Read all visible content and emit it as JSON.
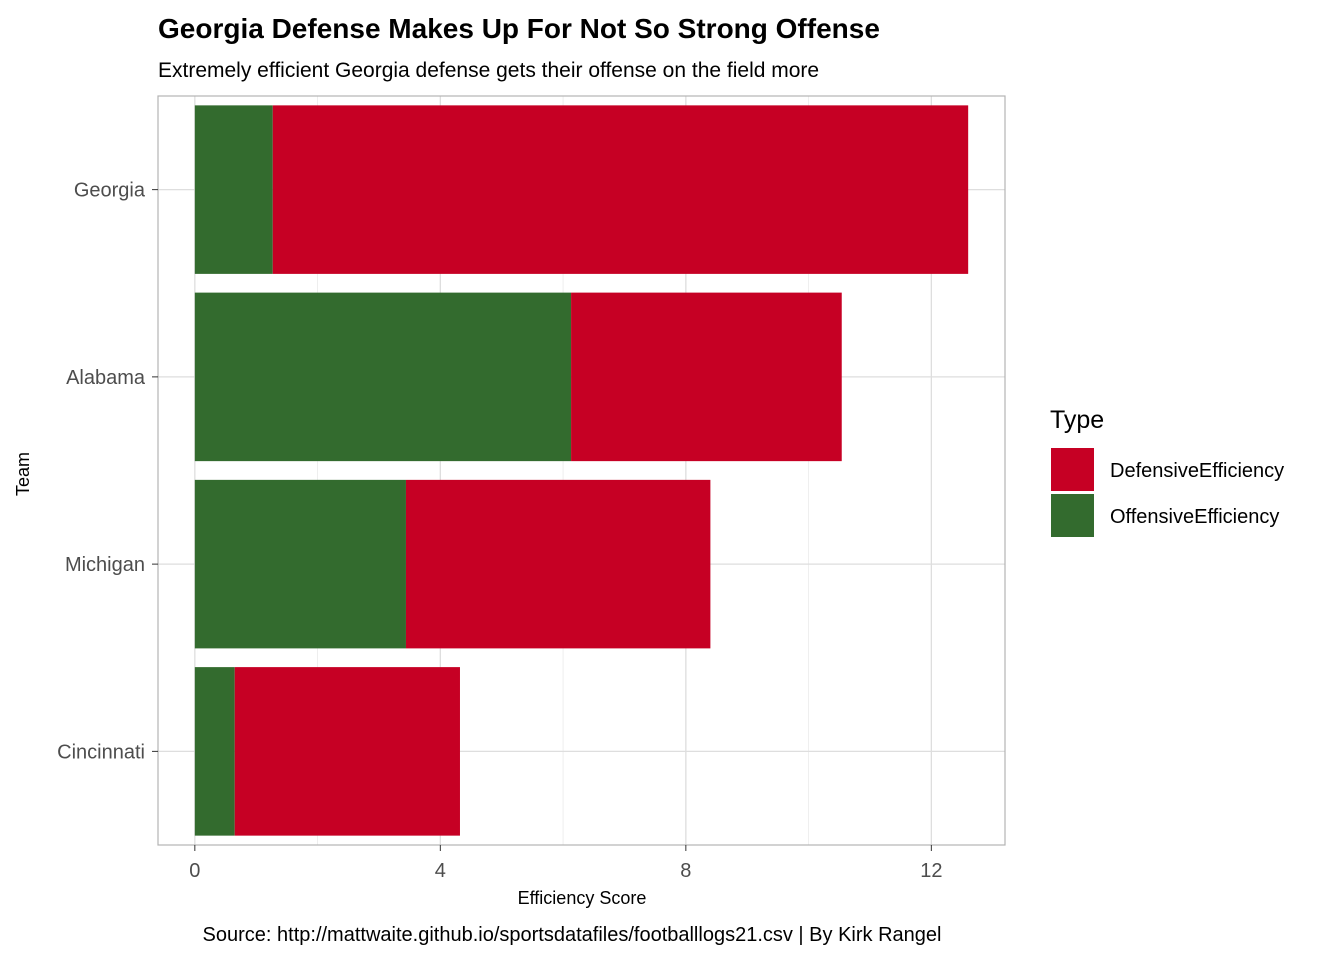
{
  "chart_data": {
    "type": "bar",
    "orientation": "horizontal",
    "stacked": true,
    "title": "Georgia Defense Makes Up For Not So Strong Offense",
    "subtitle": "Extremely efficient Georgia defense gets their offense on the field more",
    "xlabel": "Efficiency Score",
    "ylabel": "Team",
    "caption": "Source: http://mattwaite.github.io/sportsdatafiles/footballlogs21.csv | By Kirk Rangel",
    "categories": [
      "Georgia",
      "Alabama",
      "Michigan",
      "Cincinnati"
    ],
    "xlim": [
      -0.6,
      13.2
    ],
    "xticks": [
      0,
      4,
      8,
      12
    ],
    "grid": true,
    "legend": {
      "title": "Type",
      "position": "right"
    },
    "series": [
      {
        "name": "OffensiveEfficiency",
        "color": "#336b2e",
        "values": [
          1.27,
          6.13,
          3.44,
          0.65
        ]
      },
      {
        "name": "DefensiveEfficiency",
        "color": "#c60024",
        "values": [
          11.33,
          4.41,
          4.96,
          3.67
        ]
      }
    ]
  }
}
